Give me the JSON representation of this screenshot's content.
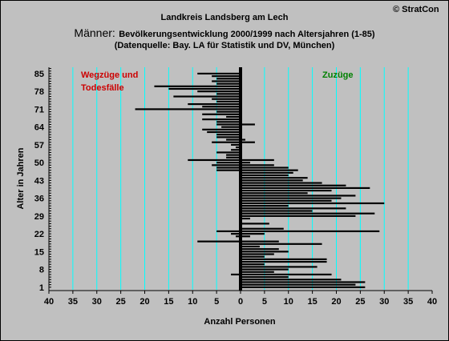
{
  "header": {
    "copyright": "© StratCon",
    "title_line1": "Landkreis Landsberg am Lech",
    "title_line2_big": "Männer:",
    "title_line2_rest": "Bevölkerungsentwicklung 2000/1999  nach Altersjahren (1-85)",
    "title_line3": "(Datenquelle: Bay. LA für Statistik und DV, München)"
  },
  "chart_data": {
    "type": "bar",
    "orientation": "horizontal",
    "xlabel": "Anzahl Personen",
    "ylabel": "Alter in Jahren",
    "xlim": [
      -40,
      40
    ],
    "ylim": [
      1,
      85
    ],
    "x_ticks": [
      -40,
      -35,
      -30,
      -25,
      -20,
      -15,
      -10,
      -5,
      0,
      5,
      10,
      15,
      20,
      25,
      30,
      35,
      40
    ],
    "x_tick_labels": [
      "40",
      "35",
      "30",
      "25",
      "20",
      "15",
      "10",
      "5",
      "0",
      "5",
      "10",
      "15",
      "20",
      "25",
      "30",
      "35",
      "40"
    ],
    "y_ticks": [
      1,
      8,
      15,
      22,
      29,
      36,
      43,
      50,
      57,
      64,
      71,
      78,
      85
    ],
    "grid": "vertical",
    "left_annotation": "Wegzüge und\nTodesfälle",
    "right_annotation": "Zuzüge",
    "colors": {
      "bars": "#000000",
      "grid": "#00ffff",
      "left_annotation": "#cc0000",
      "right_annotation": "#008000",
      "background": "#c0c0c0"
    },
    "ages": [
      1,
      2,
      3,
      4,
      5,
      6,
      7,
      8,
      9,
      10,
      11,
      12,
      13,
      14,
      15,
      16,
      17,
      18,
      19,
      20,
      21,
      22,
      23,
      24,
      25,
      26,
      27,
      28,
      29,
      30,
      31,
      32,
      33,
      34,
      35,
      36,
      37,
      38,
      39,
      40,
      41,
      42,
      43,
      44,
      45,
      46,
      47,
      48,
      49,
      50,
      51,
      52,
      53,
      54,
      55,
      56,
      57,
      58,
      59,
      60,
      61,
      62,
      63,
      64,
      65,
      66,
      67,
      68,
      69,
      70,
      71,
      72,
      73,
      74,
      75,
      76,
      77,
      78,
      79,
      80,
      81,
      82,
      83,
      84,
      85
    ],
    "series": [
      {
        "name": "Wegzüge und Todesfälle",
        "values": [
          0,
          0,
          0,
          0,
          0,
          -2,
          0,
          0,
          0,
          0,
          0,
          0,
          0,
          0,
          0,
          0,
          0,
          0,
          -9,
          0,
          -1,
          -2,
          -5,
          0,
          0,
          0,
          0,
          0,
          0,
          0,
          0,
          0,
          0,
          0,
          0,
          0,
          0,
          0,
          0,
          0,
          0,
          0,
          0,
          0,
          0,
          0,
          -5,
          -5,
          -6,
          -5,
          -11,
          -3,
          -3,
          -5,
          -2,
          -1,
          -2,
          -6,
          -3,
          -5,
          -5,
          -7,
          -8,
          -4,
          -5,
          -5,
          -8,
          -3,
          -8,
          -5,
          -22,
          -8,
          -11,
          -5,
          -6,
          -14,
          -5,
          -9,
          -15,
          -18,
          -5,
          -6,
          -5,
          -6,
          -9
        ]
      },
      {
        "name": "Zuzüge",
        "values": [
          26,
          24,
          26,
          21,
          10,
          19,
          7,
          10,
          16,
          5,
          18,
          18,
          5,
          7,
          10,
          8,
          4,
          17,
          8,
          0,
          2,
          5,
          29,
          9,
          0,
          6,
          0,
          2,
          24,
          28,
          15,
          22,
          10,
          30,
          19,
          21,
          24,
          14,
          19,
          27,
          22,
          17,
          13,
          14,
          10,
          11,
          12,
          10,
          7,
          2,
          7,
          0,
          0,
          0,
          0,
          0,
          0,
          3,
          1,
          0,
          0,
          0,
          0,
          0,
          3,
          0,
          0,
          0,
          0,
          0,
          0,
          0,
          0,
          0,
          0,
          0,
          0,
          0,
          0,
          0,
          0,
          0,
          0,
          0,
          0
        ]
      }
    ]
  }
}
